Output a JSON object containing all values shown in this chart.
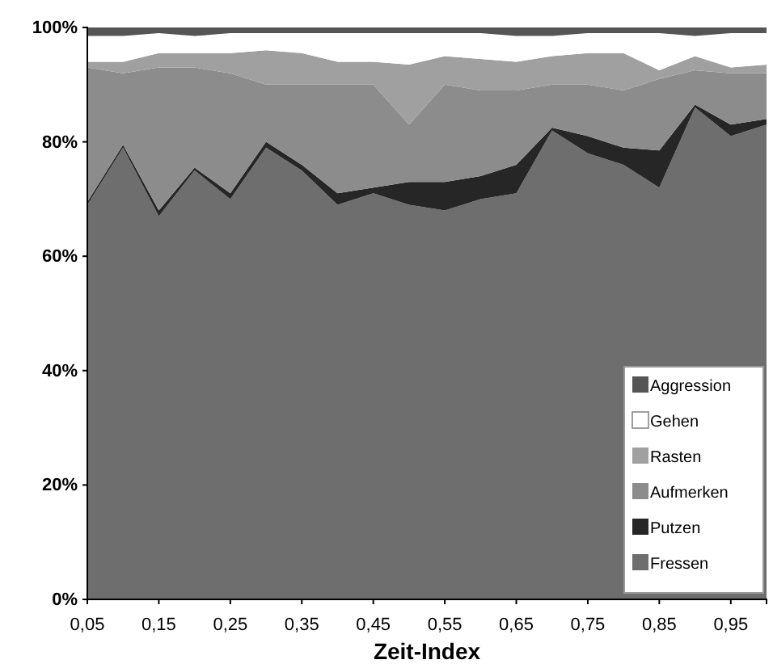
{
  "chart_data": {
    "type": "area",
    "stacked": true,
    "xlabel": "Zeit-Index",
    "x": [
      0.05,
      0.1,
      0.15,
      0.2,
      0.25,
      0.3,
      0.35,
      0.4,
      0.45,
      0.5,
      0.55,
      0.6,
      0.65,
      0.7,
      0.75,
      0.8,
      0.85,
      0.9,
      0.95,
      1.0
    ],
    "xlim": [
      0.05,
      1.0
    ],
    "xticks": [
      {
        "value": 0.05,
        "label": "0,05"
      },
      {
        "value": 0.15,
        "label": "0,15"
      },
      {
        "value": 0.25,
        "label": "0,25"
      },
      {
        "value": 0.35,
        "label": "0,35"
      },
      {
        "value": 0.45,
        "label": "0,45"
      },
      {
        "value": 0.55,
        "label": "0,55"
      },
      {
        "value": 0.65,
        "label": "0,65"
      },
      {
        "value": 0.75,
        "label": "0,75"
      },
      {
        "value": 0.85,
        "label": "0,85"
      },
      {
        "value": 0.95,
        "label": "0,95"
      }
    ],
    "ylim": [
      0,
      100
    ],
    "yticks": [
      {
        "value": 0,
        "label": "0%"
      },
      {
        "value": 20,
        "label": "20%"
      },
      {
        "value": 40,
        "label": "40%"
      },
      {
        "value": 60,
        "label": "60%"
      },
      {
        "value": 80,
        "label": "80%"
      },
      {
        "value": 100,
        "label": "100%"
      }
    ],
    "grid": false,
    "legend": "bottom right",
    "series": [
      {
        "name": "Fressen",
        "color": "#6e6e6e",
        "values": [
          69,
          79,
          67,
          75,
          70,
          79,
          75,
          69,
          71,
          69,
          68,
          70,
          71,
          82,
          78,
          76,
          72,
          86,
          81,
          83
        ]
      },
      {
        "name": "Putzen",
        "color": "#262626",
        "values": [
          0.5,
          0.5,
          1,
          0.5,
          1,
          1,
          1,
          2,
          1,
          4,
          5,
          4,
          5,
          0.5,
          3,
          3,
          6.5,
          0.5,
          2,
          1
        ]
      },
      {
        "name": "Aufmerken",
        "color": "#8c8c8c",
        "values": [
          23.5,
          12.5,
          25,
          17.5,
          21,
          10,
          14,
          19,
          18,
          10,
          17,
          15,
          13,
          7.5,
          9,
          10,
          12.5,
          6,
          9,
          8
        ]
      },
      {
        "name": "Rasten",
        "color": "#a0a0a0",
        "values": [
          1,
          2,
          2.5,
          2.5,
          3.5,
          6,
          5.5,
          4,
          4,
          10.5,
          5,
          5.5,
          5,
          5,
          5.5,
          6.5,
          1.5,
          2.5,
          1,
          1.5
        ]
      },
      {
        "name": "Gehen",
        "color": "#ffffff",
        "values": [
          4.5,
          4.5,
          3.5,
          3,
          3.5,
          3,
          3.5,
          5,
          5,
          5.5,
          4,
          4.5,
          4.5,
          3.5,
          3.5,
          3.5,
          6.5,
          3.5,
          6,
          5.5
        ]
      },
      {
        "name": "Aggression",
        "color": "#555555",
        "values": [
          1.5,
          1.5,
          1,
          1.5,
          1,
          1,
          1,
          1,
          1,
          1,
          1,
          1,
          1.5,
          1.5,
          1,
          1,
          1,
          1.5,
          1,
          1
        ]
      }
    ]
  }
}
